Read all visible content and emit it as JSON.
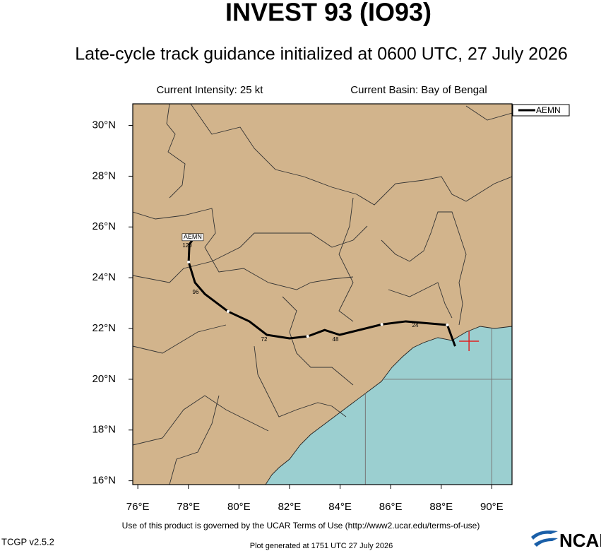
{
  "chart_data": {
    "type": "track",
    "title": "INVEST 93 (IO93)",
    "subtitle": "Late-cycle track guidance initialized at 0600 UTC, 27 July 2026",
    "intensity": "Current Intensity: 25 kt",
    "basin": "Current Basin: Bay of Bengal",
    "xlim": [
      75.8,
      90.8
    ],
    "ylim": [
      15.85,
      30.85
    ],
    "xticks": [
      {
        "value": 76,
        "label": "76°E"
      },
      {
        "value": 78,
        "label": "78°E"
      },
      {
        "value": 80,
        "label": "80°E"
      },
      {
        "value": 82,
        "label": "82°E"
      },
      {
        "value": 84,
        "label": "84°E"
      },
      {
        "value": 86,
        "label": "86°E"
      },
      {
        "value": 88,
        "label": "88°E"
      },
      {
        "value": 90,
        "label": "90°E"
      }
    ],
    "yticks": [
      {
        "value": 16,
        "label": "16°N"
      },
      {
        "value": 18,
        "label": "18°N"
      },
      {
        "value": 20,
        "label": "20°N"
      },
      {
        "value": 22,
        "label": "22°N"
      },
      {
        "value": 24,
        "label": "24°N"
      },
      {
        "value": 26,
        "label": "26°N"
      },
      {
        "value": 28,
        "label": "28°N"
      },
      {
        "value": 30,
        "label": "30°N"
      }
    ],
    "grid_lon": [
      85,
      90
    ],
    "grid_lat": [
      20
    ],
    "current_position": {
      "x": 89.1,
      "y": 21.5
    },
    "series": [
      {
        "name": "AEMN",
        "color": "#000000",
        "x": [
          88.55,
          88.24,
          87.29,
          86.6,
          85.65,
          83.98,
          83.39,
          82.72,
          82.0,
          81.1,
          80.41,
          79.57,
          78.65,
          78.26,
          78.01,
          78.04,
          78.2
        ],
        "y": [
          21.3,
          22.14,
          22.22,
          22.28,
          22.16,
          21.75,
          21.94,
          21.69,
          21.61,
          21.75,
          22.28,
          22.67,
          23.36,
          23.81,
          24.62,
          25.32,
          25.54
        ]
      }
    ],
    "track_labels": [
      120,
      96,
      72,
      48,
      24
    ],
    "footer": "Use of this product is governed by the UCAR Terms of Use (http://www2.ucar.edu/terms-of-use)",
    "version": "TCGP v2.5.2",
    "generated": "Plot generated at 1751 UTC   27 July 2026",
    "logo": "NCAR"
  }
}
